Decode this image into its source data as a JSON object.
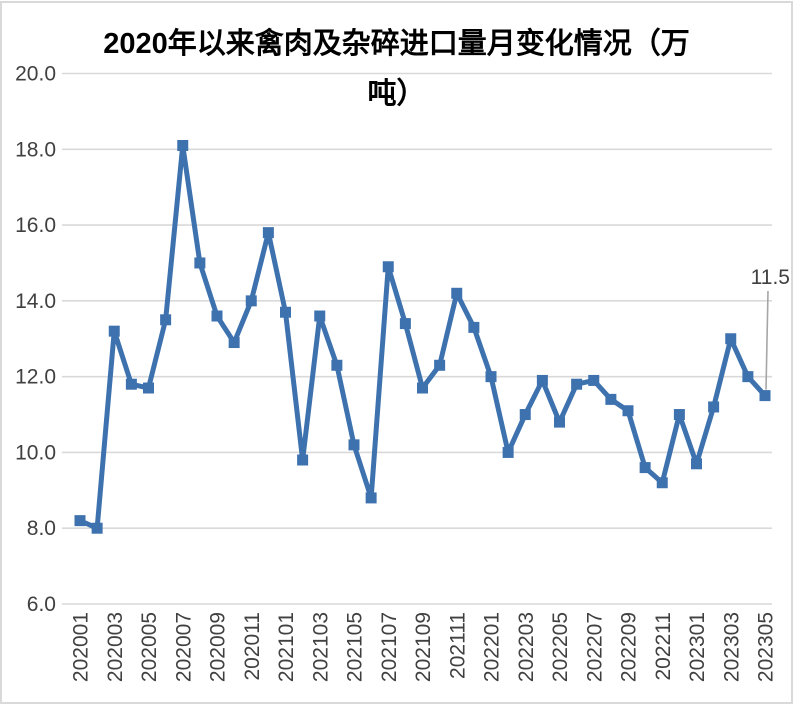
{
  "title": {
    "line1": "2020年以来禽肉及杂碎进口量月变化情况（万",
    "line2": "吨）"
  },
  "chart_data": {
    "type": "line",
    "title": "2020年以来禽肉及杂碎进口量月变化情况（万吨）",
    "x": [
      "202001",
      "202002",
      "202003",
      "202004",
      "202005",
      "202006",
      "202007",
      "202008",
      "202009",
      "202010",
      "202011",
      "202012",
      "202101",
      "202102",
      "202103",
      "202104",
      "202105",
      "202106",
      "202107",
      "202108",
      "202109",
      "202110",
      "202111",
      "202112",
      "202201",
      "202202",
      "202203",
      "202204",
      "202205",
      "202206",
      "202207",
      "202208",
      "202209",
      "202210",
      "202211",
      "202212",
      "202301",
      "202302",
      "202303",
      "202304",
      "202305"
    ],
    "values": [
      8.2,
      8.0,
      13.2,
      11.8,
      11.7,
      13.5,
      18.1,
      15.0,
      13.6,
      12.9,
      14.0,
      15.8,
      13.7,
      9.8,
      13.6,
      12.3,
      10.2,
      8.8,
      14.9,
      13.4,
      11.7,
      12.3,
      14.2,
      13.3,
      12.0,
      10.0,
      11.0,
      11.9,
      10.8,
      11.8,
      11.9,
      11.4,
      11.1,
      9.6,
      9.2,
      11.0,
      9.7,
      11.2,
      13.0,
      12.0,
      11.5
    ],
    "xtick_labels": [
      "202001",
      "202003",
      "202005",
      "202007",
      "202009",
      "202011",
      "202101",
      "202103",
      "202105",
      "202107",
      "202109",
      "202111",
      "202201",
      "202203",
      "202205",
      "202207",
      "202209",
      "202211",
      "202301",
      "202303",
      "202305"
    ],
    "yticks": [
      6,
      8,
      10,
      12,
      14,
      16,
      18,
      20
    ],
    "ylim": [
      6.0,
      20.0
    ],
    "xlabel": "",
    "ylabel": "",
    "grid": true,
    "legend": false,
    "marker": "square",
    "series_color": "#3E72AF",
    "gridline_color": "#D9D9D9",
    "axis_label_color": "#404040",
    "annotation": {
      "text": "11.5",
      "target_x": "202305",
      "value": 11.5,
      "leader_color": "#A6A6A6"
    }
  }
}
